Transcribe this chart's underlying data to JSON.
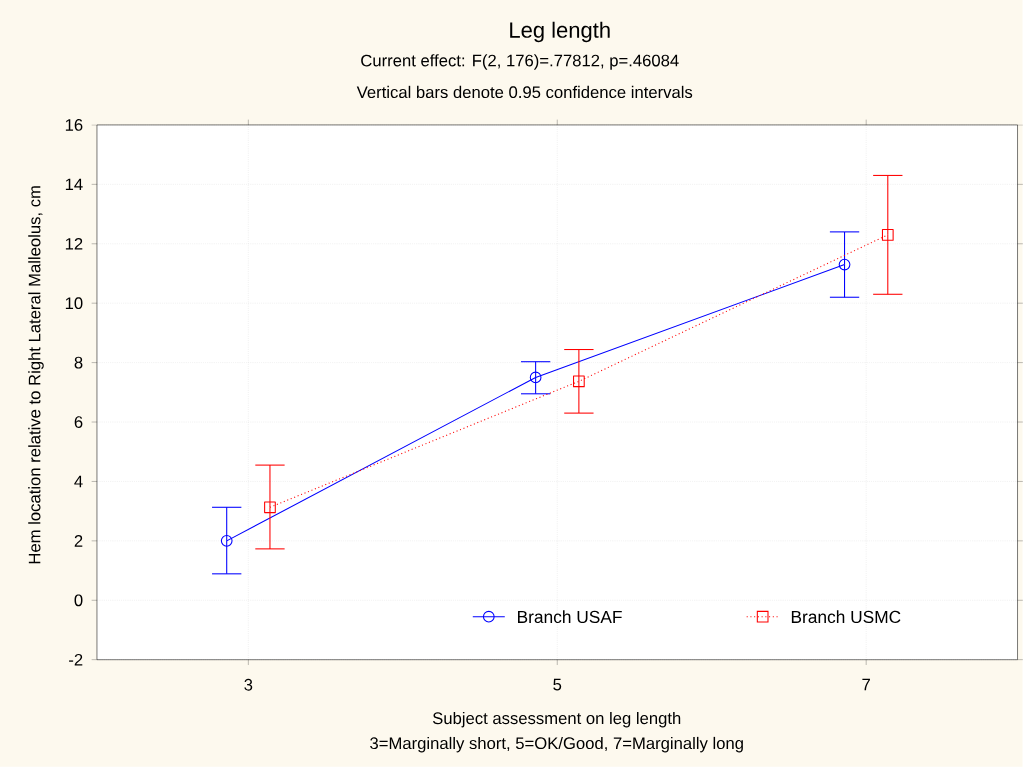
{
  "chart_data": {
    "type": "line",
    "title": "Leg length",
    "subtitle": "Current effect: F(2, 176)=.77812, p=.46084",
    "annotations": [
      "Vertical bars denote 0.95 confidence intervals",
      "3=Marginally short, 5=OK/Good, 7=Marginally long"
    ],
    "xlabel": "Subject assessment on leg length",
    "ylabel": "Hem location relative to Right Lateral Malleolus, cm",
    "categories": [
      "3",
      "5",
      "7"
    ],
    "series": [
      {
        "name": "Branch    USAF",
        "color": "#0000ff",
        "marker": "circle",
        "line_style": "solid",
        "values": [
          2.0,
          7.5,
          11.3
        ],
        "errors": [
          [
            0.89,
            3.13
          ],
          [
            6.95,
            8.03
          ],
          [
            10.2,
            12.4
          ]
        ]
      },
      {
        "name": "Branch    USMC",
        "color": "#ff0000",
        "marker": "square",
        "line_style": "dotted",
        "values": [
          3.13,
          7.37,
          12.3
        ],
        "errors": [
          [
            1.73,
            4.55
          ],
          [
            6.3,
            8.44
          ],
          [
            10.3,
            14.3
          ]
        ]
      }
    ],
    "ylim": [
      -2,
      16
    ],
    "yticks": [
      -2,
      0,
      2,
      4,
      6,
      8,
      10,
      12,
      14,
      16
    ],
    "grid": true,
    "legend": "bottom right"
  }
}
